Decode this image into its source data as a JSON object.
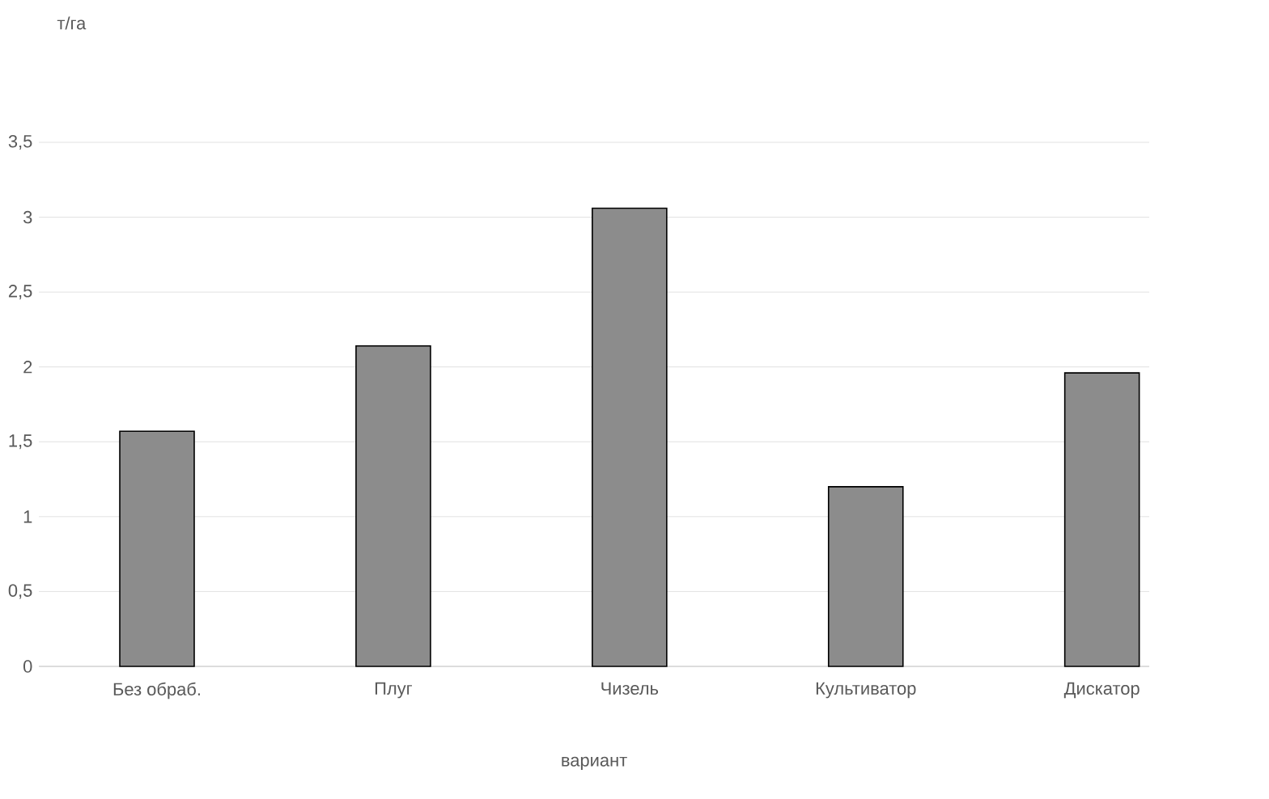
{
  "chart_data": {
    "type": "bar",
    "categories": [
      "Без обраб.",
      "Плуг",
      "Чизель",
      "Культиватор",
      "Дискатор"
    ],
    "values": [
      1.57,
      2.14,
      3.06,
      1.2,
      1.96
    ],
    "color": "#8c8c8c",
    "xlabel": "вариант",
    "annotations": [
      "т/га"
    ],
    "ylim": [
      0,
      3.5
    ],
    "yticks": [
      0,
      {
        "value": 0.5,
        "label": "0,5"
      },
      1,
      {
        "value": 1.5,
        "label": "1,5"
      },
      2,
      {
        "value": 2.5,
        "label": "2,5"
      },
      3,
      {
        "value": 3.5,
        "label": "3,5"
      }
    ],
    "grid": "y"
  }
}
